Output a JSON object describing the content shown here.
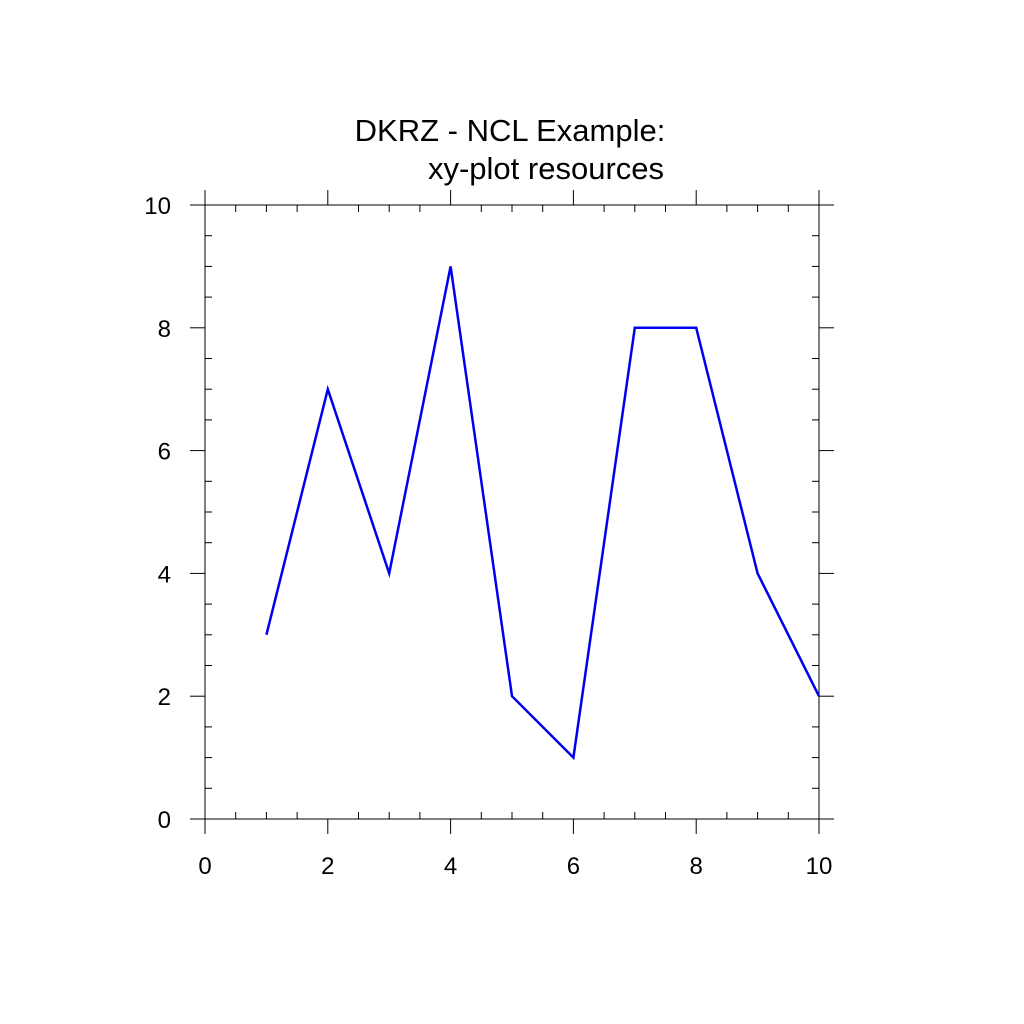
{
  "chart_data": {
    "type": "line",
    "title_lines": [
      "DKRZ - NCL Example:",
      "xy-plot resources"
    ],
    "xlabel": "",
    "ylabel": "",
    "xlim": [
      0,
      10
    ],
    "ylim": [
      0,
      10
    ],
    "x_major_ticks": [
      0,
      2,
      4,
      6,
      8,
      10
    ],
    "y_major_ticks": [
      0,
      2,
      4,
      6,
      8,
      10
    ],
    "x_tick_labels": [
      "0",
      "2",
      "4",
      "6",
      "8",
      "10"
    ],
    "y_tick_labels": [
      "0",
      "2",
      "4",
      "6",
      "8",
      "10"
    ],
    "minor_tick_step": 0.5,
    "grid": false,
    "legend": "none",
    "series": [
      {
        "color": "#0000ee",
        "x": [
          1,
          2,
          3,
          4,
          5,
          6,
          7,
          8,
          9,
          10
        ],
        "y": [
          3,
          7,
          4,
          9,
          2,
          1,
          8,
          8,
          4,
          2
        ]
      }
    ]
  }
}
